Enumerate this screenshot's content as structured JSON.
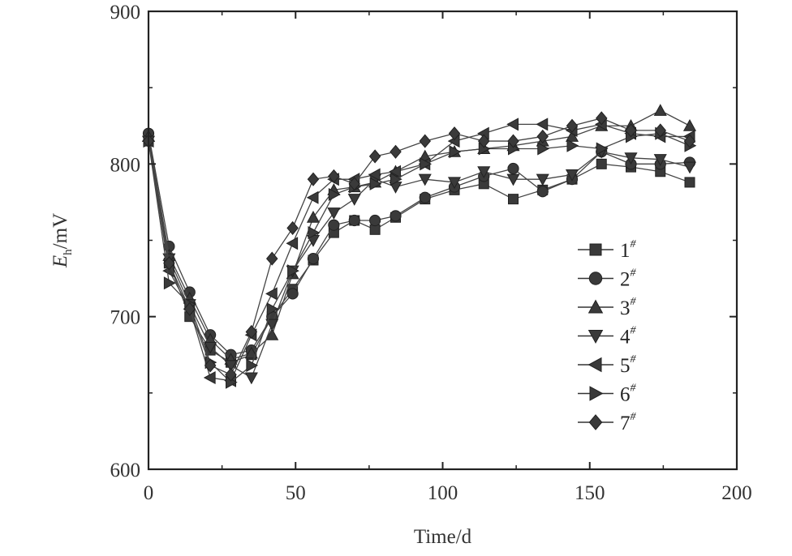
{
  "chart_data": {
    "type": "line",
    "title": "",
    "xlabel": "Time/d",
    "ylabel": {
      "main": "E",
      "sub": "h",
      "unit": "/mV"
    },
    "xlim": [
      0,
      200
    ],
    "ylim": [
      600,
      900
    ],
    "xticks": [
      0,
      50,
      100,
      150,
      200
    ],
    "yticks": [
      600,
      700,
      800,
      900
    ],
    "grid": false,
    "legend_position": "right",
    "x": [
      0,
      7,
      14,
      21,
      28,
      35,
      42,
      49,
      56,
      63,
      70,
      77,
      84,
      94,
      104,
      114,
      124,
      134,
      144,
      154,
      164,
      174,
      184
    ],
    "series": [
      {
        "name": "1",
        "sup": "#",
        "marker": "square",
        "values": [
          815,
          735,
          700,
          678,
          670,
          675,
          700,
          718,
          737,
          755,
          763,
          757,
          765,
          777,
          783,
          787,
          777,
          783,
          790,
          800,
          798,
          795,
          788
        ]
      },
      {
        "name": "2",
        "sup": "#",
        "marker": "circle",
        "values": [
          820,
          746,
          716,
          688,
          675,
          678,
          700,
          715,
          738,
          760,
          763,
          763,
          766,
          778,
          785,
          792,
          797,
          782,
          790,
          808,
          800,
          800,
          801
        ]
      },
      {
        "name": "3",
        "sup": "#",
        "marker": "triangle-up",
        "values": [
          818,
          740,
          712,
          685,
          672,
          676,
          688,
          728,
          765,
          783,
          785,
          788,
          795,
          805,
          808,
          810,
          812,
          815,
          818,
          825,
          825,
          835,
          825
        ]
      },
      {
        "name": "4",
        "sup": "#",
        "marker": "triangle-down",
        "values": [
          815,
          738,
          708,
          680,
          668,
          660,
          695,
          730,
          750,
          768,
          777,
          790,
          785,
          790,
          788,
          795,
          790,
          790,
          793,
          808,
          804,
          803,
          798
        ]
      },
      {
        "name": "5",
        "sup": "#",
        "marker": "triangle-left",
        "values": [
          815,
          730,
          705,
          660,
          658,
          688,
          715,
          748,
          778,
          790,
          790,
          793,
          795,
          800,
          815,
          820,
          826,
          826,
          822,
          826,
          820,
          818,
          818
        ]
      },
      {
        "name": "6",
        "sup": "#",
        "marker": "triangle-right",
        "values": [
          815,
          722,
          708,
          670,
          657,
          668,
          705,
          730,
          755,
          780,
          785,
          787,
          790,
          800,
          808,
          810,
          810,
          810,
          812,
          810,
          818,
          820,
          812
        ]
      },
      {
        "name": "7",
        "sup": "#",
        "marker": "diamond",
        "values": [
          815,
          735,
          705,
          668,
          662,
          690,
          738,
          758,
          790,
          792,
          787,
          805,
          808,
          815,
          820,
          815,
          815,
          818,
          825,
          830,
          822,
          822,
          815
        ]
      }
    ]
  }
}
